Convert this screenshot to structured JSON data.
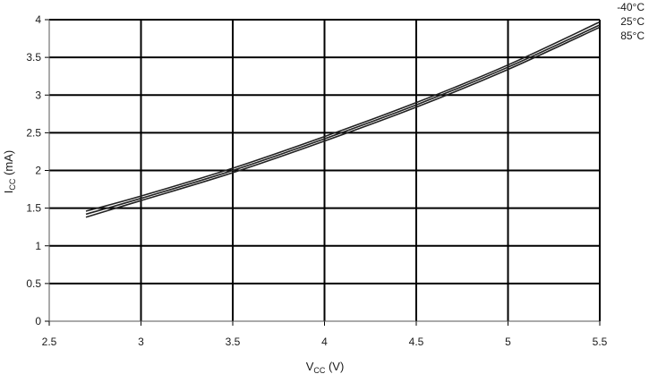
{
  "chart_data": {
    "type": "line",
    "xlabel": {
      "main": "V",
      "sub": "CC",
      "unit": " (V)"
    },
    "ylabel": {
      "main": "I",
      "sub": "CC",
      "unit": " (mA)"
    },
    "xlim": [
      2.5,
      5.5
    ],
    "ylim": [
      0,
      4
    ],
    "xticks": [
      2.5,
      3,
      3.5,
      4,
      4.5,
      5,
      5.5
    ],
    "xtick_labels": [
      "2.5",
      "3",
      "3.5",
      "4",
      "4.5",
      "5",
      "5.5"
    ],
    "yticks": [
      0,
      0.5,
      1,
      1.5,
      2,
      2.5,
      3,
      3.5,
      4
    ],
    "ytick_labels": [
      "0",
      "0.5",
      "1",
      "1.5",
      "2",
      "2.5",
      "3",
      "3.5",
      "4"
    ],
    "grid": true,
    "legend_placement": "top-right",
    "series": [
      {
        "name": "-40°C",
        "x": [
          2.7,
          3.0,
          3.5,
          4.0,
          4.5,
          5.0,
          5.5
        ],
        "y": [
          1.46,
          1.66,
          2.03,
          2.45,
          2.9,
          3.4,
          3.97
        ]
      },
      {
        "name": "25°C",
        "x": [
          2.7,
          3.0,
          3.5,
          4.0,
          4.5,
          5.0,
          5.5
        ],
        "y": [
          1.42,
          1.63,
          2.0,
          2.42,
          2.87,
          3.37,
          3.93
        ]
      },
      {
        "name": "85°C",
        "x": [
          2.7,
          3.0,
          3.5,
          4.0,
          4.5,
          5.0,
          5.5
        ],
        "y": [
          1.38,
          1.6,
          1.97,
          2.39,
          2.84,
          3.34,
          3.9
        ]
      }
    ]
  }
}
